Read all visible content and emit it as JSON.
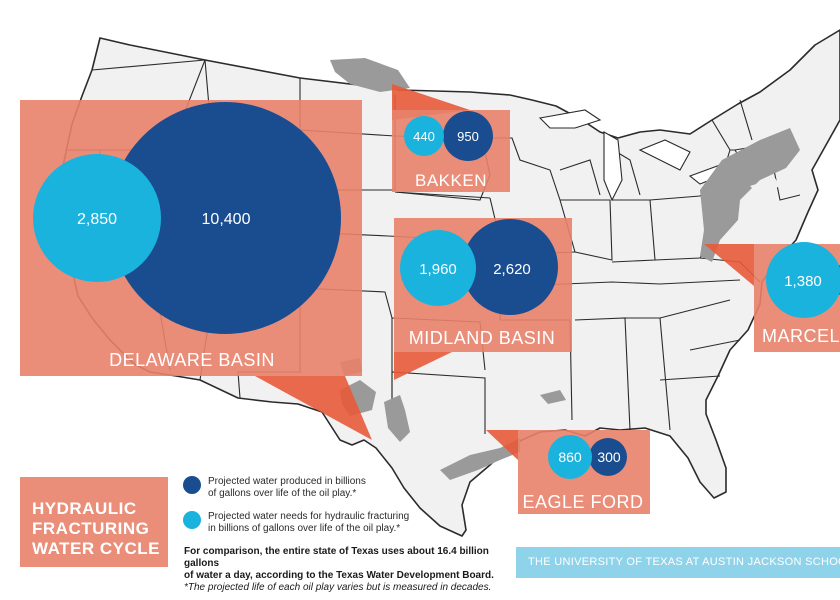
{
  "colors": {
    "ocean_map_bg": "#ffffff",
    "state_fill": "#f1f1f1",
    "state_border": "#2b2b2b",
    "shale_fill": "#9a9a9a",
    "panel": "#e8826b",
    "panel_text": "#ffffff",
    "produced": "#1a4d8f",
    "needs": "#1ab3dd",
    "footer": "#8fd3ea"
  },
  "basins": [
    {
      "name": "DELAWARE BASIN",
      "needs": "2,850",
      "produced": "10,400"
    },
    {
      "name": "BAKKEN",
      "needs": "440",
      "produced": "950"
    },
    {
      "name": "MIDLAND BASIN",
      "needs": "1,960",
      "produced": "2,620"
    },
    {
      "name": "MARCELL",
      "needs": "1,380",
      "produced": ""
    },
    {
      "name": "EAGLE FORD",
      "needs": "860",
      "produced": "300"
    }
  ],
  "title_lines": [
    "HYDRAULIC",
    "FRACTURING",
    "WATER CYCLE"
  ],
  "legend": {
    "produced_line1": "Projected water produced in billions",
    "produced_line2": "of gallons over life of the oil play.*",
    "needs_line1": "Projected water needs for hydraulic fracturing",
    "needs_line2": "in billions of gallons over life of the oil play.*"
  },
  "note": {
    "line1": "For comparison, the entire state of Texas uses about 16.4 billion gallons",
    "line2": "of water a day, according to the Texas Water Development Board.",
    "footnote": "*The projected life of each oil play varies but is measured in decades."
  },
  "footer": "THE UNIVERSITY OF TEXAS AT AUSTIN JACKSON SCHOOL OF GEOSCIENCES"
}
